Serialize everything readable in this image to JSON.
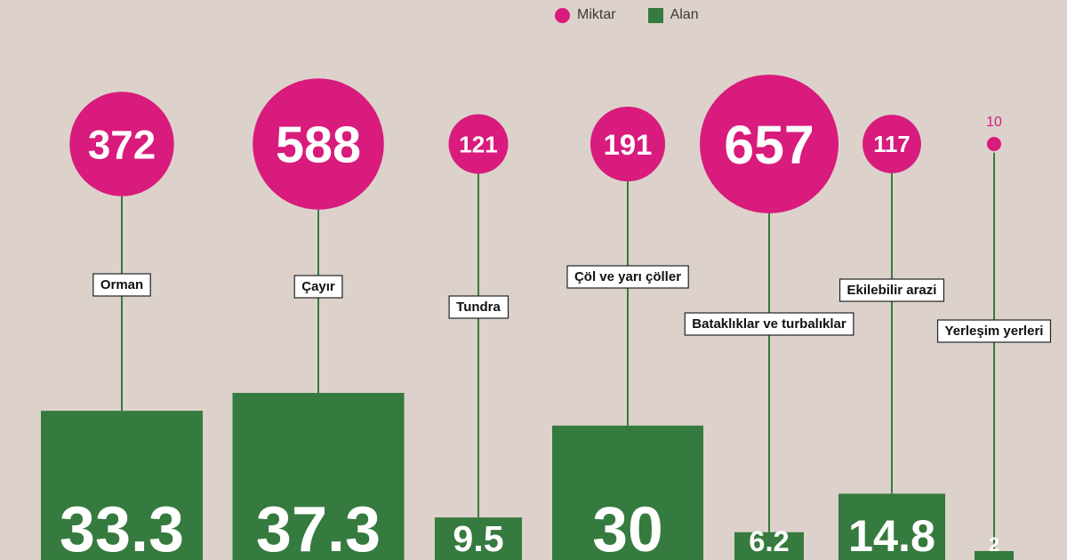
{
  "legend": {
    "amount_label": "Miktar",
    "area_label": "Alan"
  },
  "colors": {
    "background": "#dcd2cb",
    "amount": "#d81b7c",
    "area": "#357a3e",
    "stem": "#357a3e"
  },
  "chart_data": {
    "type": "bar",
    "categories": [
      "Orman",
      "Çayır",
      "Tundra",
      "Çöl ve yarı çöller",
      "Bataklıklar ve turbalıklar",
      "Ekilebilir arazi",
      "Yerleşim yerleri"
    ],
    "series": [
      {
        "name": "Miktar",
        "values": [
          372,
          588,
          121,
          191,
          657,
          117,
          10
        ]
      },
      {
        "name": "Alan",
        "values": [
          33.3,
          37.3,
          9.5,
          30,
          6.2,
          14.8,
          2
        ]
      }
    ],
    "value_labels": {
      "amount": [
        "372",
        "588",
        "121",
        "191",
        "657",
        "117",
        "10"
      ],
      "area": [
        "33.3",
        "37.3",
        "9.5",
        "30",
        "6.2",
        "14.8",
        "2"
      ]
    },
    "title": "",
    "xlabel": "",
    "ylabel": "",
    "grid": false,
    "legend_position": "top-right"
  }
}
